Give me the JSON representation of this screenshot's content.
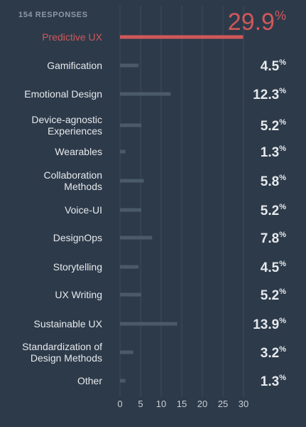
{
  "header": {
    "responses_label": "154 RESPONSES"
  },
  "colors": {
    "background": "#2d3a4a",
    "bar": "#4a5a68",
    "highlight": "#d0585a",
    "grid": "#3f4c5a",
    "label": "#e6e9ec",
    "tick": "#c9d0d6",
    "muted": "#8d99a6"
  },
  "chart_data": {
    "type": "bar",
    "orientation": "horizontal",
    "title": "",
    "xlabel": "",
    "ylabel": "",
    "xlim": [
      0,
      30
    ],
    "x_ticks": [
      0,
      5,
      10,
      15,
      20,
      25,
      30
    ],
    "grid": true,
    "value_suffix": "%",
    "highlight_index": 0,
    "categories": [
      [
        "Predictive UX"
      ],
      [
        "Gamification"
      ],
      [
        "Emotional Design"
      ],
      [
        "Device-agnostic",
        "Experiences"
      ],
      [
        "Wearables"
      ],
      [
        "Collaboration",
        "Methods"
      ],
      [
        "Voice-UI"
      ],
      [
        "DesignOps"
      ],
      [
        "Storytelling"
      ],
      [
        "UX Writing"
      ],
      [
        "Sustainable UX"
      ],
      [
        "Standardization of",
        "Design Methods"
      ],
      [
        "Other"
      ]
    ],
    "values": [
      29.9,
      4.5,
      12.3,
      5.2,
      1.3,
      5.8,
      5.2,
      7.8,
      4.5,
      5.2,
      13.9,
      3.2,
      1.3
    ]
  }
}
